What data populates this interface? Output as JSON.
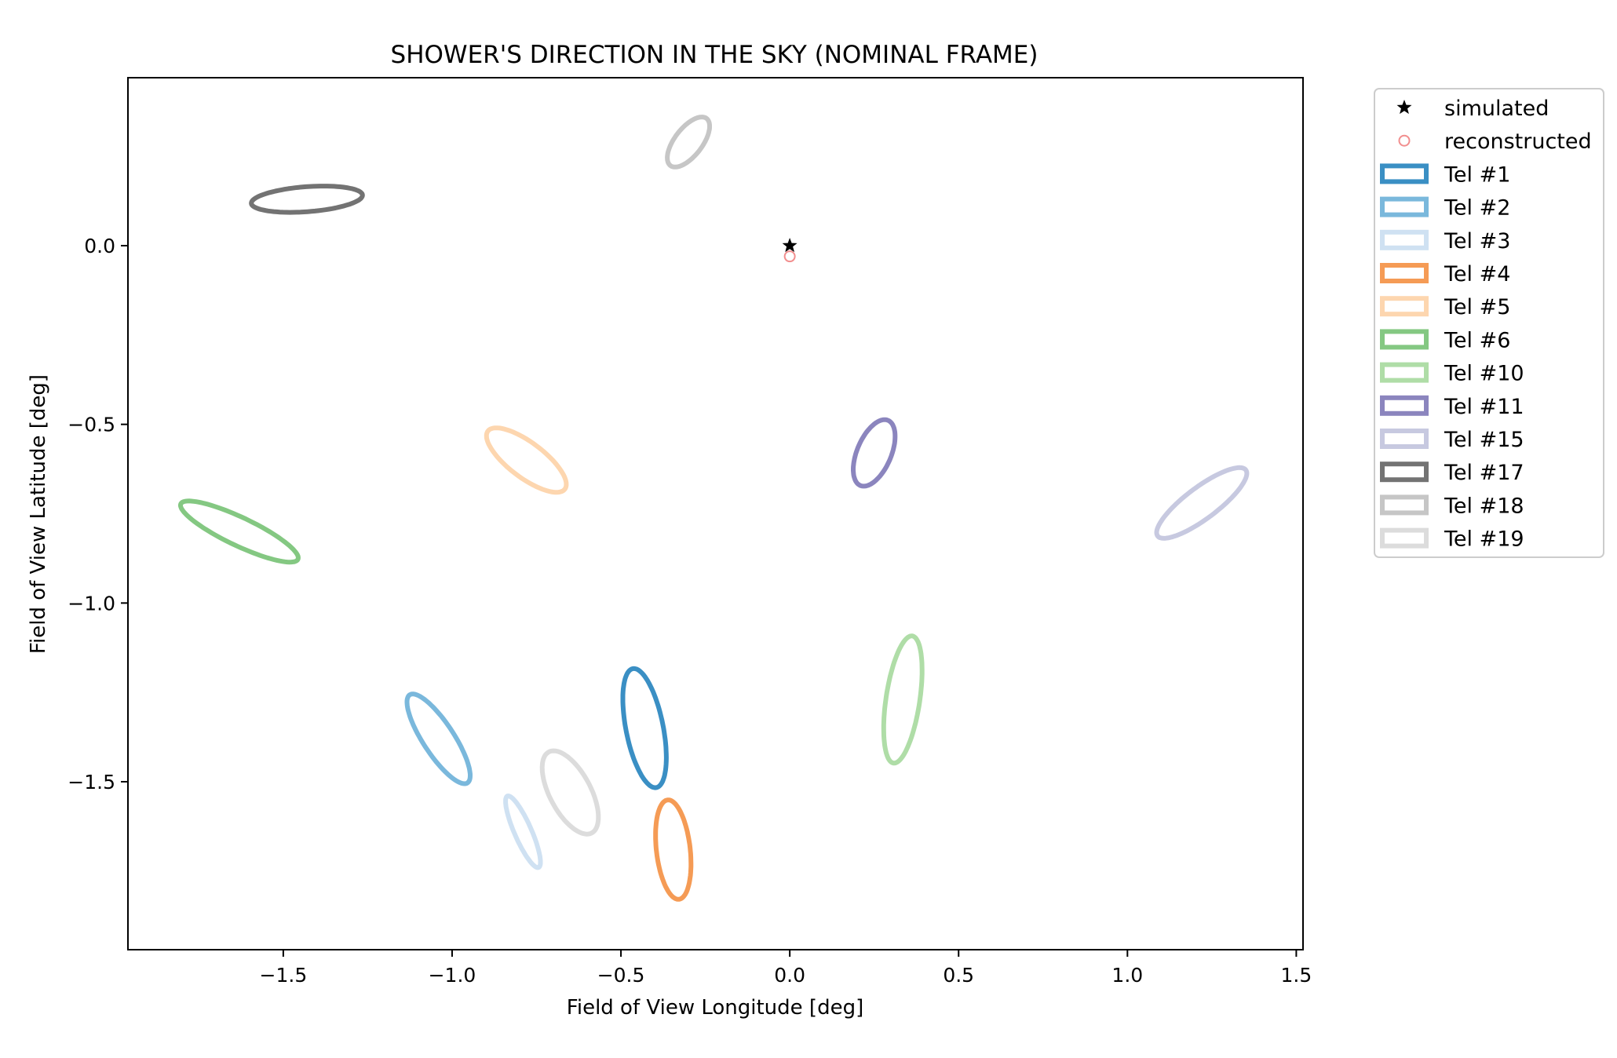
{
  "chart_data": {
    "type": "scatter",
    "title": "SHOWER'S DIRECTION IN THE SKY (NOMINAL FRAME)",
    "xlabel": "Field of View Longitude [deg]",
    "ylabel": "Field of View Latitude [deg]",
    "xlim": [
      -1.96,
      1.52
    ],
    "ylim": [
      -1.97,
      0.47
    ],
    "xticks": [
      {
        "value": -1.5,
        "label": "−1.5"
      },
      {
        "value": -1.0,
        "label": "−1.0"
      },
      {
        "value": -0.5,
        "label": "−0.5"
      },
      {
        "value": 0.0,
        "label": "0.0"
      },
      {
        "value": 0.5,
        "label": "0.5"
      },
      {
        "value": 1.0,
        "label": "1.0"
      },
      {
        "value": 1.5,
        "label": "1.5"
      }
    ],
    "yticks": [
      {
        "value": 0.0,
        "label": "0.0"
      },
      {
        "value": -0.5,
        "label": "−0.5"
      },
      {
        "value": -1.0,
        "label": "−1.0"
      },
      {
        "value": -1.5,
        "label": "−1.5"
      }
    ],
    "grid": false,
    "legend_position": "outside-right-top",
    "points": [
      {
        "name": "simulated",
        "marker": "star",
        "color": "#000000",
        "x": 0.0,
        "y": 0.0
      },
      {
        "name": "reconstructed",
        "marker": "open-circle",
        "color": "#f28e8e",
        "x": 0.0,
        "y": -0.03
      }
    ],
    "ellipses": [
      {
        "name": "Tel #1",
        "color": "#3a8fc4",
        "cx": -0.43,
        "cy": -1.35,
        "rx": 0.055,
        "ry": 0.17,
        "angle": 12
      },
      {
        "name": "Tel #2",
        "color": "#7ab8dc",
        "cx": -1.04,
        "cy": -1.38,
        "rx": 0.045,
        "ry": 0.15,
        "angle": 35
      },
      {
        "name": "Tel #3",
        "color": "#cfe1f2",
        "cx": -0.79,
        "cy": -1.64,
        "rx": 0.025,
        "ry": 0.11,
        "angle": 25
      },
      {
        "name": "Tel #4",
        "color": "#f59b55",
        "cx": -0.345,
        "cy": -1.69,
        "rx": 0.05,
        "ry": 0.14,
        "angle": 7
      },
      {
        "name": "Tel #5",
        "color": "#fdd6af",
        "cx": -0.78,
        "cy": -0.6,
        "rx": 0.05,
        "ry": 0.14,
        "angle": 55
      },
      {
        "name": "Tel #6",
        "color": "#84c882",
        "cx": -1.63,
        "cy": -0.8,
        "rx": 0.04,
        "ry": 0.19,
        "angle": 66
      },
      {
        "name": "Tel #10",
        "color": "#afdda7",
        "cx": 0.335,
        "cy": -1.27,
        "rx": 0.05,
        "ry": 0.18,
        "angle": -9
      },
      {
        "name": "Tel #11",
        "color": "#8b85be",
        "cx": 0.25,
        "cy": -0.58,
        "rx": 0.05,
        "ry": 0.1,
        "angle": -25
      },
      {
        "name": "Tel #15",
        "color": "#c7c9e0",
        "cx": 1.22,
        "cy": -0.72,
        "rx": 0.045,
        "ry": 0.16,
        "angle": -55
      },
      {
        "name": "Tel #17",
        "color": "#737373",
        "cx": -1.43,
        "cy": 0.13,
        "rx": 0.035,
        "ry": 0.165,
        "angle": -86
      },
      {
        "name": "Tel #18",
        "color": "#c6c6c6",
        "cx": -0.3,
        "cy": 0.29,
        "rx": 0.04,
        "ry": 0.085,
        "angle": -40
      },
      {
        "name": "Tel #19",
        "color": "#dcdcdc",
        "cx": -0.65,
        "cy": -1.53,
        "rx": 0.06,
        "ry": 0.13,
        "angle": 30
      }
    ]
  }
}
